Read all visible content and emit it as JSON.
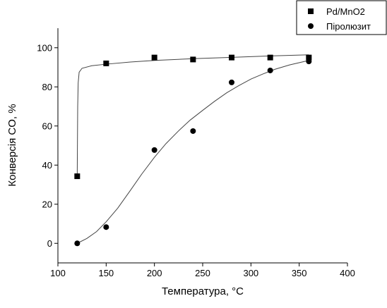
{
  "chart_data": {
    "type": "scatter",
    "x_label": "Температура, °C",
    "y_label": "Конверсія CO, %",
    "xlim": [
      100,
      400
    ],
    "xticks": [
      100,
      150,
      200,
      250,
      300,
      350,
      400
    ],
    "ylim": [
      -10,
      110
    ],
    "yticks": [
      0,
      20,
      40,
      60,
      80,
      100
    ],
    "legend": "top-right",
    "series": [
      {
        "name": "Pd/MnO2",
        "marker": "square",
        "color": "#000000",
        "x": [
          120,
          150,
          200,
          240,
          280,
          320,
          360
        ],
        "values": [
          34.3,
          92,
          95,
          94,
          95,
          95,
          95
        ],
        "fit_x": [
          120,
          120.5,
          121,
          122,
          125,
          135,
          150,
          175,
          200,
          240,
          280,
          320,
          360
        ],
        "fit_values": [
          34.3,
          70,
          82,
          87.5,
          89.5,
          90.8,
          91.6,
          92.7,
          93.5,
          94.4,
          95.1,
          95.8,
          96.4
        ]
      },
      {
        "name": "Піролюзит",
        "marker": "circle",
        "color": "#000000",
        "x": [
          120,
          150,
          200,
          240,
          280,
          320,
          360
        ],
        "values": [
          0,
          8.3,
          47.7,
          57.4,
          82.3,
          88.4,
          93
        ],
        "fit_x": [
          120,
          130,
          140,
          150,
          162,
          175,
          187,
          200,
          212,
          225,
          237,
          250,
          262,
          275,
          287,
          300,
          312,
          325,
          340,
          360
        ],
        "fit_values": [
          0,
          2.5,
          6,
          11,
          18,
          27,
          35.5,
          44,
          51,
          57.5,
          63,
          68,
          72.5,
          77,
          80.5,
          84,
          86.5,
          89,
          91.2,
          93.5
        ]
      }
    ]
  }
}
